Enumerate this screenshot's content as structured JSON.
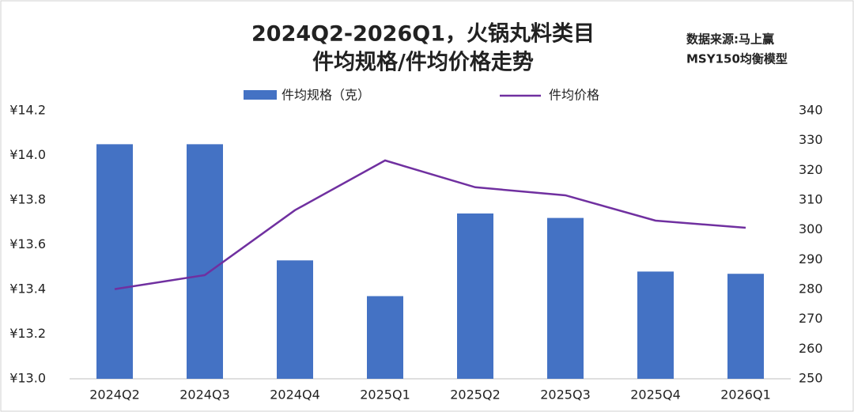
{
  "chart_data": {
    "type": "bar-line",
    "title": [
      "2024Q2-2026Q1，火锅丸料类目",
      "件均规格/件均价格走势"
    ],
    "note": [
      "数据来源:马上赢",
      "MSY150均衡模型"
    ],
    "categories": [
      "2024Q2",
      "2024Q3",
      "2024Q4",
      "2025Q1",
      "2025Q2",
      "2025Q3",
      "2025Q4",
      "2026Q1"
    ],
    "series": [
      {
        "name": "件均规格（克）",
        "type": "bar",
        "color": "#4472c4",
        "values": [
          14.05,
          14.05,
          13.53,
          13.37,
          13.74,
          13.72,
          13.48,
          13.47
        ]
      },
      {
        "name": "件均价格",
        "type": "line",
        "axis": "y2",
        "color": "#7030a0",
        "values": [
          280.1,
          284.8,
          306.6,
          323.3,
          314.3,
          311.6,
          303.1,
          300.7
        ]
      }
    ],
    "ylim": [
      13.0,
      14.2
    ],
    "yticks": [
      {
        "value": 13.0,
        "label": "¥13.0"
      },
      {
        "value": 13.2,
        "label": "¥13.2"
      },
      {
        "value": 13.4,
        "label": "¥13.4"
      },
      {
        "value": 13.6,
        "label": "¥13.6"
      },
      {
        "value": 13.8,
        "label": "¥13.8"
      },
      {
        "value": 14.0,
        "label": "¥14.0"
      },
      {
        "value": 14.2,
        "label": "¥14.2"
      }
    ],
    "y2lim": [
      250,
      340
    ],
    "y2ticks": [
      250,
      260,
      270,
      280,
      290,
      300,
      310,
      320,
      330,
      340
    ]
  }
}
